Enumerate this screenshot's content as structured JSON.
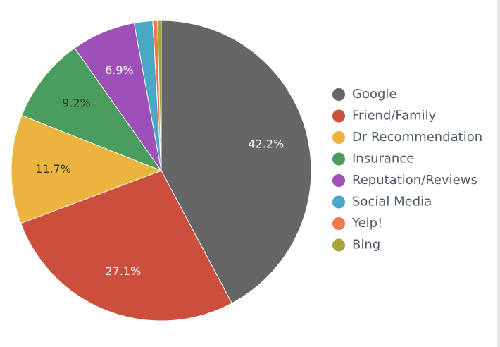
{
  "chart_data": {
    "type": "pie",
    "slices": [
      {
        "name": "Google",
        "value": 42.2,
        "label": "42.2%",
        "color": "#666666",
        "label_color": "#ffffff"
      },
      {
        "name": "Friend/Family",
        "value": 27.1,
        "label": "27.1%",
        "color": "#cc4e3c",
        "label_color": "#ffffff"
      },
      {
        "name": "Dr Recommendation",
        "value": 11.7,
        "label": "11.7%",
        "color": "#eab43e",
        "label_color": "#333333"
      },
      {
        "name": "Insurance",
        "value": 9.2,
        "label": "9.2%",
        "color": "#4b9d5e",
        "label_color": "#333333"
      },
      {
        "name": "Reputation/Reviews",
        "value": 6.9,
        "label": "6.9%",
        "color": "#9d50b8",
        "label_color": "#ffffff"
      },
      {
        "name": "Social Media",
        "value": 2.0,
        "label": "",
        "color": "#49a8c5",
        "label_color": "#ffffff"
      },
      {
        "name": "Yelp!",
        "value": 0.5,
        "label": "",
        "color": "#ee7a4d",
        "label_color": "#ffffff"
      },
      {
        "name": "Bing",
        "value": 0.4,
        "label": "",
        "color": "#a8a33d",
        "label_color": "#ffffff"
      }
    ],
    "legend_position": "right",
    "start_angle": "top",
    "direction": "clockwise"
  }
}
